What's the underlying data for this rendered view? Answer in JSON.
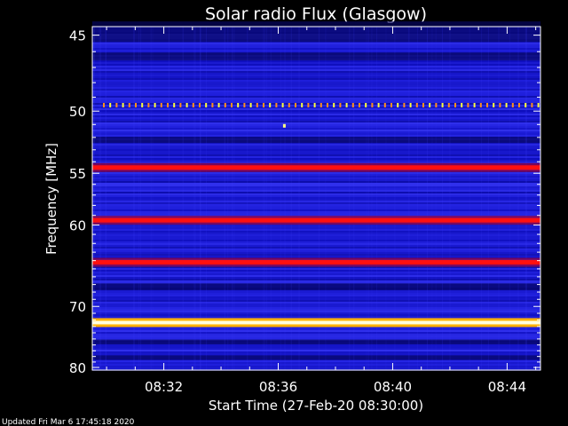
{
  "chart_data": {
    "type": "heatmap",
    "title": "Solar radio Flux (Glasgow)",
    "xlabel": "Start Time (27-Feb-20 08:30:00)",
    "ylabel": "Frequency [MHz]",
    "x_range": [
      "08:29:30",
      "08:45:10"
    ],
    "y_range": [
      44.5,
      80.5
    ],
    "y_ticks": [
      45,
      50,
      55,
      60,
      70,
      80
    ],
    "y_tick_labels": [
      "45",
      "50",
      "55",
      "60",
      "70",
      "80"
    ],
    "y_axis_scale": "reciprocal",
    "x_ticks": [
      "08:32",
      "08:36",
      "08:40",
      "08:44"
    ],
    "background_level": "blue",
    "emission_bands": [
      {
        "frequency_mhz": 49.6,
        "level": "dotted orange/yellow"
      },
      {
        "frequency_mhz": 54.5,
        "level": "red"
      },
      {
        "frequency_mhz": 59.5,
        "level": "red"
      },
      {
        "frequency_mhz": 64.2,
        "level": "red"
      },
      {
        "frequency_mhz": 72.4,
        "level": "white/yellow"
      }
    ],
    "grid": false,
    "colors": {
      "low": "#1a1ae6",
      "high": "#ffffff",
      "mid": "#ff0000"
    }
  },
  "footer_text": "Updated Fri Mar  6 17:45:18 2020"
}
